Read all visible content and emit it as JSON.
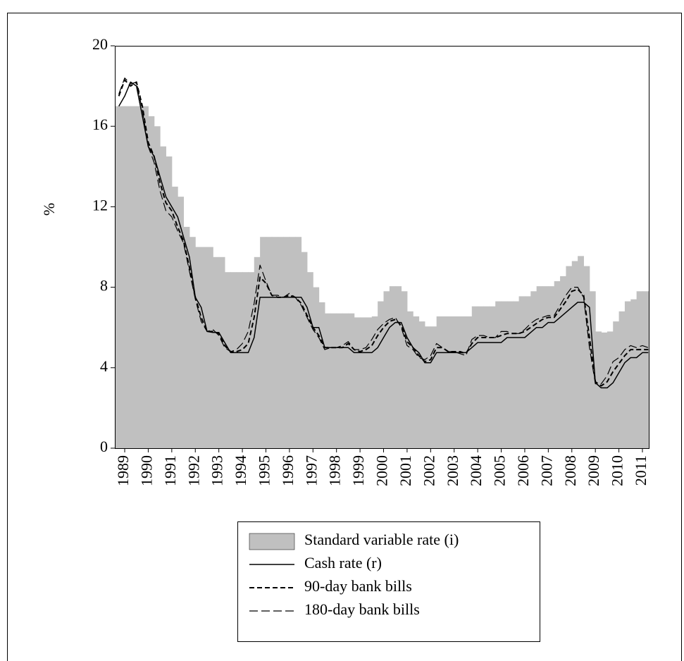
{
  "chart_data": {
    "type": "line",
    "ylabel": "%",
    "x": [
      1988.75,
      1989,
      1989.25,
      1989.5,
      1989.75,
      1990,
      1990.25,
      1990.5,
      1990.75,
      1991,
      1991.25,
      1991.5,
      1991.75,
      1992,
      1992.25,
      1992.5,
      1992.75,
      1993,
      1993.25,
      1993.5,
      1993.75,
      1994,
      1994.25,
      1994.5,
      1994.75,
      1995,
      1995.25,
      1995.5,
      1995.75,
      1996,
      1996.25,
      1996.5,
      1996.75,
      1997,
      1997.25,
      1997.5,
      1997.75,
      1998,
      1998.25,
      1998.5,
      1998.75,
      1999,
      1999.25,
      1999.5,
      1999.75,
      2000,
      2000.25,
      2000.5,
      2000.75,
      2001,
      2001.25,
      2001.5,
      2001.75,
      2002,
      2002.25,
      2002.5,
      2002.75,
      2003,
      2003.25,
      2003.5,
      2003.75,
      2004,
      2004.25,
      2004.5,
      2004.75,
      2005,
      2005.25,
      2005.5,
      2005.75,
      2006,
      2006.25,
      2006.5,
      2006.75,
      2007,
      2007.25,
      2007.5,
      2007.75,
      2008,
      2008.25,
      2008.5,
      2008.75,
      2009,
      2009.25,
      2009.5,
      2009.75,
      2010,
      2010.25,
      2010.5,
      2010.75,
      2011,
      2011.25
    ],
    "series": [
      {
        "name": "Standard variable rate (i)",
        "kind": "step-area",
        "color": "#c0c0c0",
        "values": [
          17.0,
          17,
          17,
          17,
          17,
          16.5,
          16.0,
          15.0,
          14.5,
          13.0,
          12.5,
          11.0,
          10.5,
          10.0,
          10.0,
          10.0,
          9.5,
          9.5,
          8.75,
          8.75,
          8.75,
          8.75,
          8.75,
          9.5,
          10.5,
          10.5,
          10.5,
          10.5,
          10.5,
          10.5,
          10.5,
          9.75,
          8.75,
          8.0,
          7.25,
          6.7,
          6.7,
          6.7,
          6.7,
          6.7,
          6.5,
          6.5,
          6.5,
          6.55,
          7.3,
          7.8,
          8.05,
          8.05,
          7.8,
          6.8,
          6.55,
          6.3,
          6.05,
          6.05,
          6.55,
          6.55,
          6.55,
          6.55,
          6.55,
          6.55,
          7.05,
          7.05,
          7.05,
          7.05,
          7.3,
          7.3,
          7.3,
          7.3,
          7.55,
          7.55,
          7.8,
          8.05,
          8.05,
          8.05,
          8.3,
          8.55,
          9.05,
          9.3,
          9.55,
          9.05,
          7.8,
          5.8,
          5.75,
          5.8,
          6.3,
          6.8,
          7.3,
          7.4,
          7.8,
          7.8,
          7.8
        ]
      },
      {
        "name": "Cash rate (r)",
        "kind": "line",
        "color": "#000000",
        "dash": "none",
        "width": 1.5,
        "values": [
          17.0,
          17.5,
          18.2,
          18.0,
          16.5,
          15.0,
          14.5,
          13.5,
          12.5,
          12.0,
          11.5,
          10.5,
          9.5,
          7.5,
          7.0,
          5.8,
          5.75,
          5.75,
          5.25,
          4.75,
          4.75,
          4.75,
          4.75,
          5.5,
          7.5,
          7.5,
          7.5,
          7.5,
          7.5,
          7.5,
          7.5,
          7.5,
          7.0,
          6.0,
          6.0,
          5.0,
          5.0,
          5.0,
          5.0,
          5.0,
          4.75,
          4.75,
          4.75,
          4.75,
          5.0,
          5.5,
          6.0,
          6.25,
          6.25,
          5.5,
          5.0,
          4.75,
          4.25,
          4.25,
          4.75,
          4.75,
          4.75,
          4.75,
          4.75,
          4.75,
          5.0,
          5.25,
          5.25,
          5.25,
          5.25,
          5.25,
          5.5,
          5.5,
          5.5,
          5.5,
          5.75,
          6.0,
          6.0,
          6.25,
          6.25,
          6.5,
          6.75,
          7.0,
          7.25,
          7.25,
          7.0,
          3.25,
          3.0,
          3.0,
          3.25,
          3.75,
          4.25,
          4.5,
          4.5,
          4.75,
          4.75
        ]
      },
      {
        "name": "90-day bank bills",
        "kind": "line",
        "color": "#000000",
        "dash": "7,4",
        "width": 2,
        "values": [
          17.5,
          18.3,
          18.0,
          18.2,
          17.0,
          15.2,
          14.5,
          13.2,
          12.2,
          11.8,
          11.0,
          10.3,
          9.0,
          7.5,
          6.5,
          5.8,
          5.8,
          5.7,
          5.1,
          4.8,
          4.8,
          4.9,
          5.2,
          6.5,
          8.5,
          8.2,
          7.6,
          7.5,
          7.5,
          7.6,
          7.5,
          7.2,
          6.6,
          6.0,
          5.6,
          5.0,
          5.0,
          5.0,
          5.0,
          5.2,
          4.9,
          4.8,
          4.9,
          5.1,
          5.6,
          6.0,
          6.3,
          6.4,
          6.1,
          5.3,
          5.0,
          4.6,
          4.3,
          4.4,
          5.0,
          5.0,
          4.8,
          4.8,
          4.8,
          4.7,
          5.2,
          5.5,
          5.5,
          5.5,
          5.5,
          5.6,
          5.7,
          5.7,
          5.7,
          5.8,
          6.0,
          6.2,
          6.4,
          6.5,
          6.5,
          6.9,
          7.3,
          7.8,
          7.9,
          7.6,
          5.5,
          3.3,
          3.1,
          3.3,
          3.8,
          4.2,
          4.6,
          4.9,
          4.9,
          4.9,
          4.9
        ]
      },
      {
        "name": "180-day bank bills",
        "kind": "line",
        "color": "#000000",
        "dash": "12,5",
        "width": 1.2,
        "values": [
          17.6,
          18.4,
          18.1,
          18.2,
          16.8,
          15.0,
          14.2,
          12.8,
          11.8,
          11.5,
          10.8,
          10.2,
          8.8,
          7.4,
          6.3,
          5.8,
          5.9,
          5.6,
          5.0,
          4.8,
          4.9,
          5.2,
          5.8,
          7.2,
          9.1,
          8.3,
          7.6,
          7.6,
          7.5,
          7.7,
          7.5,
          7.1,
          6.5,
          5.9,
          5.5,
          4.9,
          5.0,
          5.0,
          5.1,
          5.3,
          4.9,
          4.9,
          5.0,
          5.4,
          5.9,
          6.2,
          6.4,
          6.5,
          6.0,
          5.1,
          4.9,
          4.5,
          4.4,
          4.6,
          5.2,
          5.0,
          4.8,
          4.8,
          4.7,
          4.6,
          5.4,
          5.6,
          5.6,
          5.5,
          5.5,
          5.8,
          5.8,
          5.7,
          5.7,
          5.9,
          6.2,
          6.4,
          6.5,
          6.6,
          6.6,
          7.1,
          7.6,
          8.0,
          8.0,
          7.5,
          5.0,
          3.2,
          3.2,
          3.6,
          4.3,
          4.5,
          4.9,
          5.1,
          5.0,
          5.1,
          5.0
        ]
      }
    ],
    "xlim": [
      1988.58,
      2011.27
    ],
    "xticks": [
      1989,
      1990,
      1991,
      1992,
      1993,
      1994,
      1995,
      1996,
      1997,
      1998,
      1999,
      2000,
      2001,
      2002,
      2003,
      2004,
      2005,
      2006,
      2007,
      2008,
      2009,
      2010,
      2011
    ],
    "ylim": [
      0,
      20
    ],
    "yticks": [
      0,
      4,
      8,
      12,
      16,
      20
    ],
    "grid": false,
    "legend": "bottom"
  }
}
